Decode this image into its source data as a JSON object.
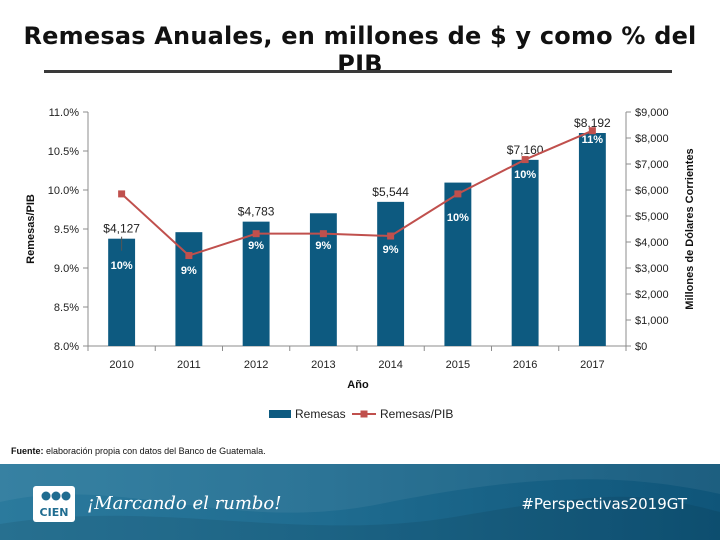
{
  "header": {
    "title": "Remesas Anuales, en millones de $ y como % del PIB"
  },
  "chart_data": {
    "type": "bar",
    "categories": [
      "2010",
      "2011",
      "2012",
      "2013",
      "2014",
      "2015",
      "2016",
      "2017"
    ],
    "series": [
      {
        "name": "Remesas",
        "kind": "bar",
        "axis": "right",
        "color": "#0d5a80",
        "values": [
          4127,
          4378,
          4783,
          5105,
          5544,
          6285,
          7160,
          8192
        ],
        "labels": [
          "$4,127",
          "",
          "$4,783",
          "",
          "$5,544",
          "",
          "$7,160",
          "$8,192"
        ]
      },
      {
        "name": "Remesas/PIB",
        "kind": "line",
        "axis": "left",
        "color": "#c0504d",
        "values": [
          9.95,
          9.16,
          9.44,
          9.44,
          9.41,
          9.95,
          10.39,
          10.76
        ],
        "labels": [
          "10%",
          "9%",
          "9%",
          "9%",
          "9%",
          "10%",
          "10%",
          "11%"
        ]
      }
    ],
    "xlabel": "Año",
    "ylabel_left": "Remesas/PIB",
    "ylabel_right": "Millones de Dólares Corrientes",
    "ylim_left": [
      8.0,
      11.0
    ],
    "ylim_right": [
      0,
      9000
    ],
    "yticks_left": [
      "8.0%",
      "8.5%",
      "9.0%",
      "9.5%",
      "10.0%",
      "10.5%",
      "11.0%"
    ],
    "yticks_right": [
      "$0",
      "$1,000",
      "$2,000",
      "$3,000",
      "$4,000",
      "$5,000",
      "$6,000",
      "$7,000",
      "$8,000",
      "$9,000"
    ],
    "legend": [
      "Remesas",
      "Remesas/PIB"
    ],
    "legend_position": "bottom"
  },
  "source": {
    "label": "Fuente:",
    "text": "elaboración propia con datos del Banco de Guatemala."
  },
  "footer": {
    "logo_text": "CIEN",
    "slogan": "¡Marcando el rumbo!",
    "hashtag": "#Perspectivas2019GT"
  }
}
